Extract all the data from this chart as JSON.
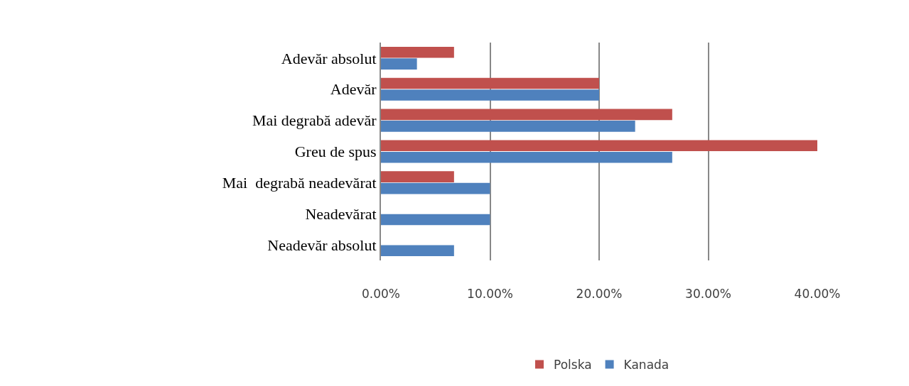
{
  "chart_data": {
    "type": "bar",
    "orientation": "horizontal",
    "categories": [
      "Adevăr absolut",
      "Adevăr",
      "Mai degrabă adevăr",
      "Greu de spus",
      "Mai  degrabă neadevărat",
      "Neadevărat",
      "Neadevăr absolut"
    ],
    "series": [
      {
        "name": "Polska",
        "color": "#c0504d",
        "values": [
          6.7,
          20,
          26.7,
          40,
          6.7,
          0,
          0
        ]
      },
      {
        "name": "Kanada",
        "color": "#4f81bd",
        "values": [
          3.3,
          20,
          23.3,
          26.7,
          10,
          10,
          6.7
        ]
      }
    ],
    "xlim": [
      0,
      40
    ],
    "xticks": [
      {
        "value": 0,
        "label": "0.00%"
      },
      {
        "value": 10,
        "label": "10.00%"
      },
      {
        "value": 20,
        "label": "20.00%"
      },
      {
        "value": 30,
        "label": "30.00%"
      },
      {
        "value": 40,
        "label": "40.00%"
      }
    ],
    "grid": "x",
    "legend": "bottom"
  }
}
